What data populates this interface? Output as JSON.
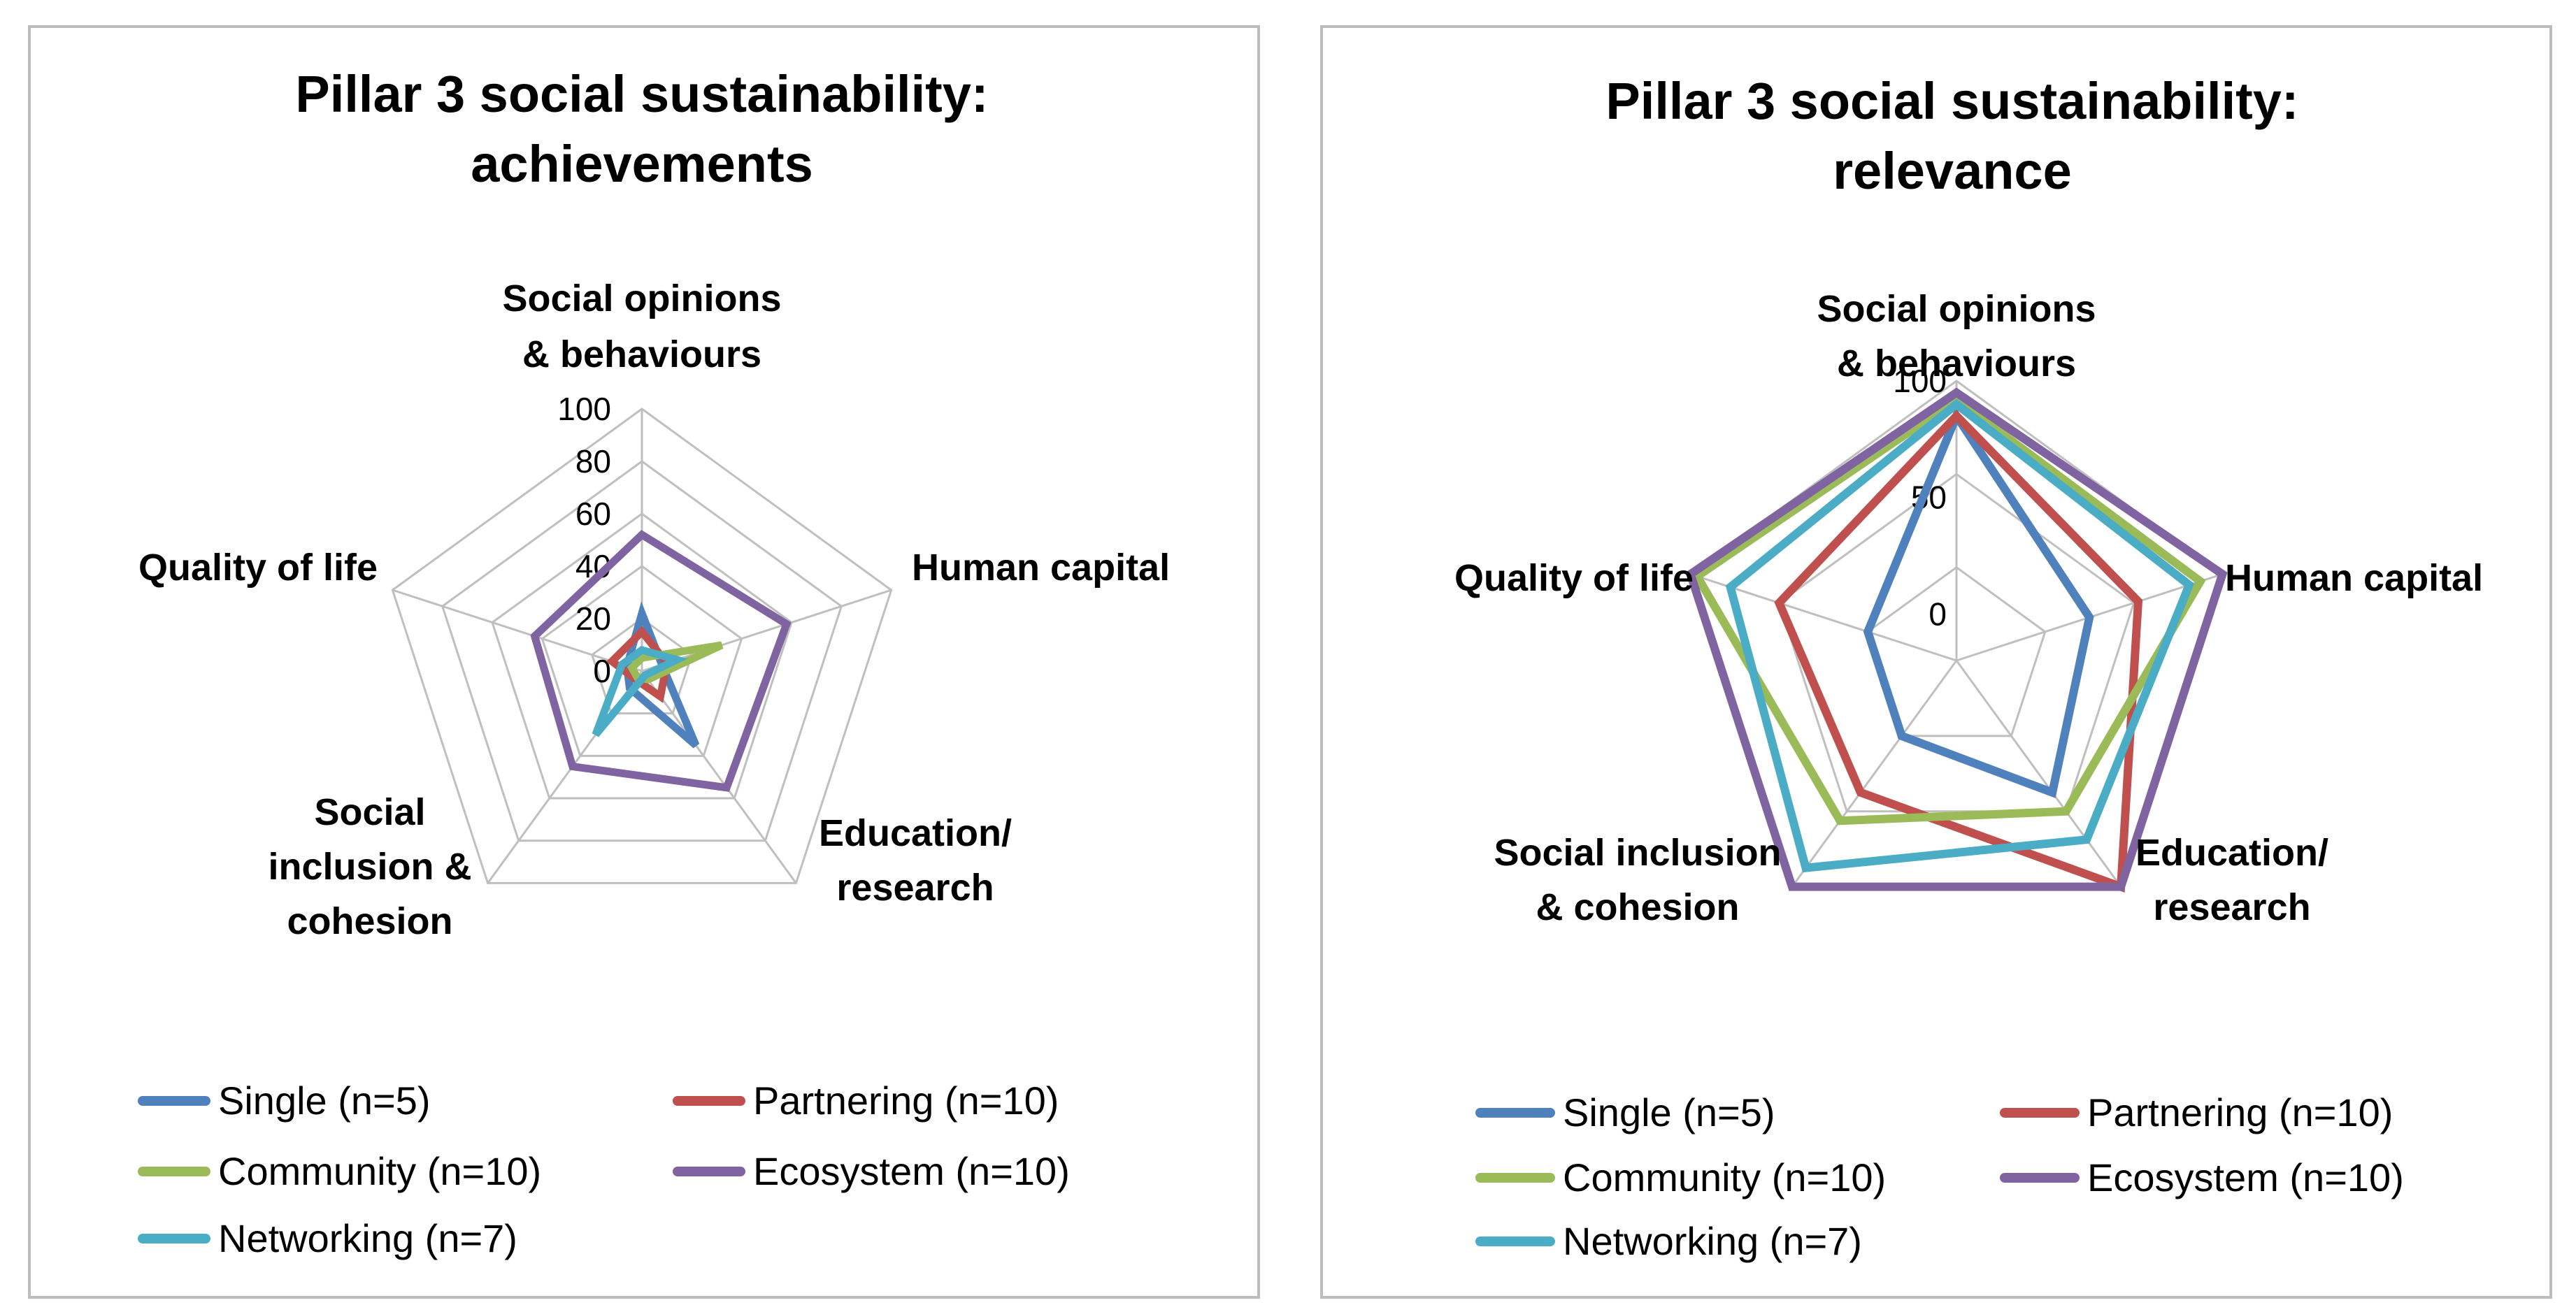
{
  "chart_data": [
    {
      "type": "radar",
      "title": [
        "Pillar 3 social sustainability:",
        "achievements"
      ],
      "axes": [
        [
          "Social opinions",
          "& behaviours"
        ],
        [
          "Human capital"
        ],
        [
          "Education/",
          "research"
        ],
        [
          "Social",
          "inclusion &",
          "cohesion"
        ],
        [
          "Quality of life"
        ]
      ],
      "rmin": 0,
      "rmax": 100,
      "ticks": [
        "0",
        "20",
        "40",
        "60",
        "80",
        "100"
      ],
      "grid": true,
      "legend_position": "bottom",
      "series": [
        {
          "name": "Single (n=5)",
          "color": "#4f81bd",
          "values": [
            22,
            8,
            35,
            8,
            6
          ]
        },
        {
          "name": "Partnering (n=10)",
          "color": "#c0504d",
          "values": [
            15,
            10,
            12,
            4,
            12
          ]
        },
        {
          "name": "Community (n=10)",
          "color": "#9bbb59",
          "values": [
            5,
            32,
            4,
            3,
            4
          ]
        },
        {
          "name": "Ecosystem (n=10)",
          "color": "#8064a2",
          "values": [
            52,
            58,
            55,
            45,
            43
          ]
        },
        {
          "name": "Networking (n=7)",
          "color": "#4bacc6",
          "values": [
            8,
            14,
            2,
            30,
            8
          ]
        }
      ]
    },
    {
      "type": "radar",
      "title": [
        "Pillar 3 social sustainability:",
        "relevance"
      ],
      "axes": [
        [
          "Social opinions",
          "& behaviours"
        ],
        [
          "Human capital"
        ],
        [
          "Education/",
          "research"
        ],
        [
          "Social inclusion",
          "& cohesion"
        ],
        [
          "Quality of life"
        ]
      ],
      "rmin": -20,
      "rmax": 100,
      "ticks": [
        "0",
        "50",
        "100"
      ],
      "grid": true,
      "legend_position": "bottom",
      "series": [
        {
          "name": "Single (n=5)",
          "color": "#4f81bd",
          "values": [
            85,
            40,
            50,
            20,
            20
          ]
        },
        {
          "name": "Partnering (n=10)",
          "color": "#c0504d",
          "values": [
            85,
            62,
            100,
            50,
            60
          ]
        },
        {
          "name": "Community (n=10)",
          "color": "#9bbb59",
          "values": [
            92,
            90,
            60,
            65,
            97
          ]
        },
        {
          "name": "Ecosystem (n=10)",
          "color": "#8064a2",
          "values": [
            95,
            100,
            100,
            100,
            100
          ]
        },
        {
          "name": "Networking (n=7)",
          "color": "#4bacc6",
          "values": [
            90,
            85,
            75,
            90,
            82
          ]
        }
      ]
    }
  ]
}
